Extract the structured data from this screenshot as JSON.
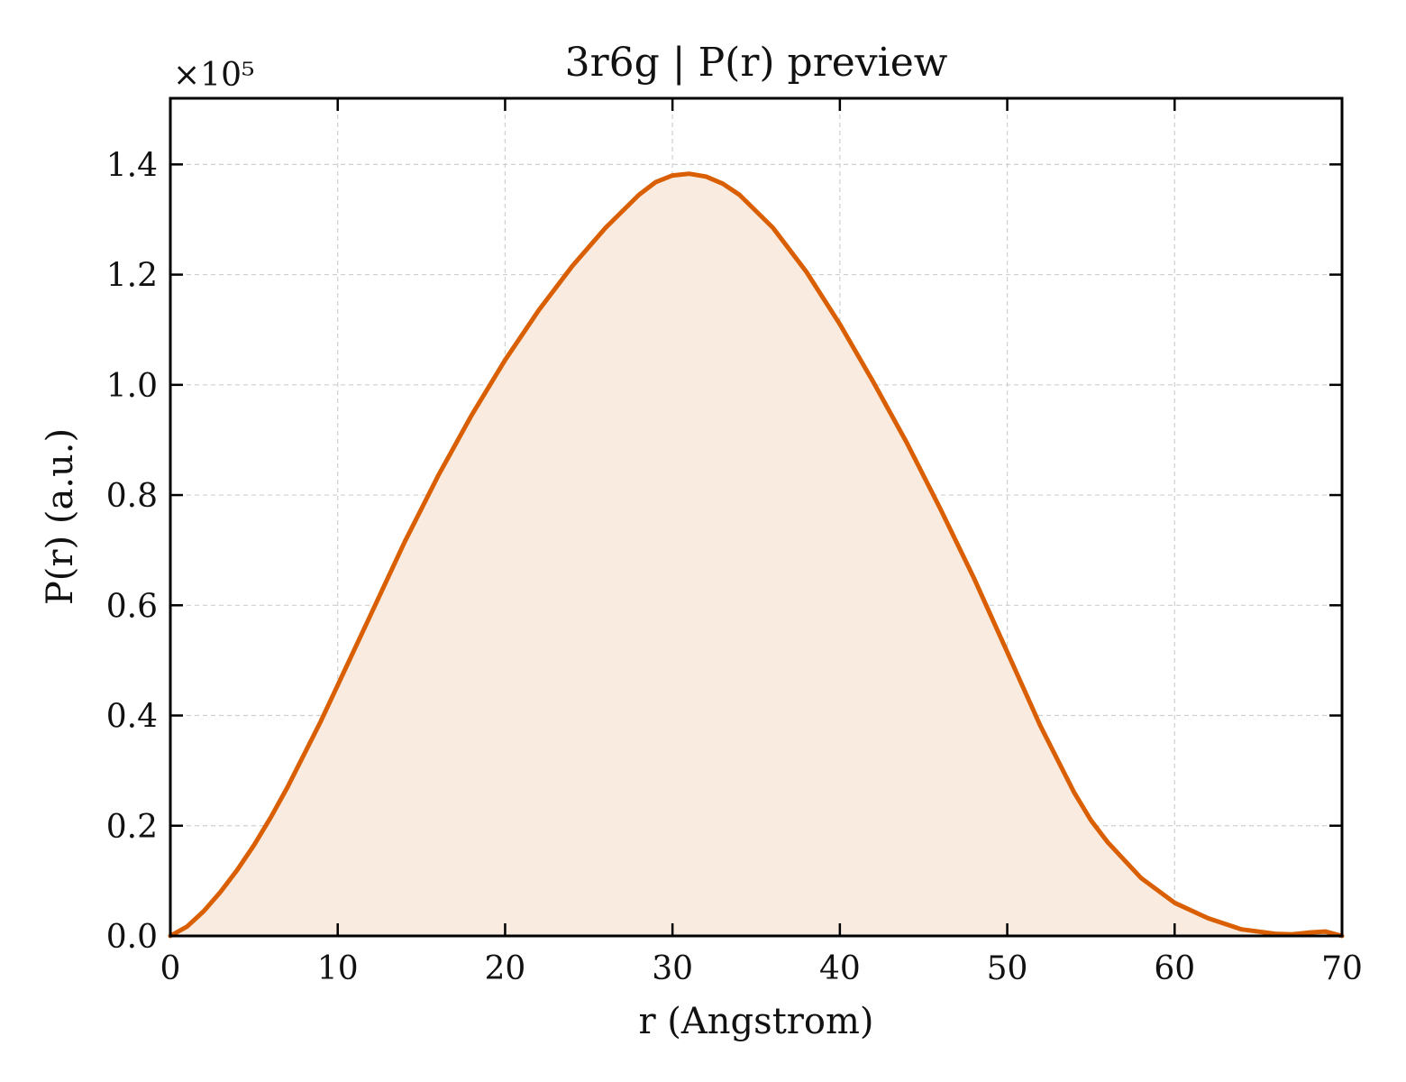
{
  "chart_data": {
    "type": "area",
    "title": "3r6g | P(r) preview",
    "xlabel": "r (Angstrom)",
    "ylabel": "P(r) (a.u.)",
    "y_multiplier_label": "×10⁵",
    "y_multiplier": 100000,
    "xlim": [
      0,
      70
    ],
    "ylim": [
      0,
      1.52
    ],
    "x_ticks": [
      0,
      10,
      20,
      30,
      40,
      50,
      60,
      70
    ],
    "y_ticks": [
      0.0,
      0.2,
      0.4,
      0.6,
      0.8,
      1.0,
      1.2,
      1.4
    ],
    "x_tick_labels": [
      "0",
      "10",
      "20",
      "30",
      "40",
      "50",
      "60",
      "70"
    ],
    "y_tick_labels": [
      "0.0",
      "0.2",
      "0.4",
      "0.6",
      "0.8",
      "1.0",
      "1.2",
      "1.4"
    ],
    "grid": true,
    "line_color": "#d95f02",
    "fill_color": "#f9ebe0",
    "series": [
      {
        "x": [
          0,
          1,
          2,
          3,
          4,
          5,
          6,
          7,
          8,
          9,
          10,
          12,
          14,
          16,
          18,
          20,
          22,
          24,
          26,
          28,
          29,
          30,
          31,
          32,
          33,
          34,
          36,
          38,
          40,
          42,
          44,
          46,
          48,
          50,
          52,
          54,
          55,
          56,
          58,
          60,
          62,
          64,
          66,
          67,
          68,
          69,
          70
        ],
        "y": [
          0.0,
          0.017,
          0.045,
          0.08,
          0.12,
          0.165,
          0.215,
          0.27,
          0.33,
          0.39,
          0.455,
          0.585,
          0.715,
          0.835,
          0.945,
          1.045,
          1.135,
          1.215,
          1.285,
          1.345,
          1.368,
          1.38,
          1.383,
          1.378,
          1.365,
          1.345,
          1.285,
          1.205,
          1.11,
          1.005,
          0.895,
          0.775,
          0.65,
          0.515,
          0.38,
          0.26,
          0.21,
          0.17,
          0.105,
          0.06,
          0.032,
          0.012,
          0.004,
          0.003,
          0.006,
          0.008,
          0.0
        ]
      }
    ]
  }
}
